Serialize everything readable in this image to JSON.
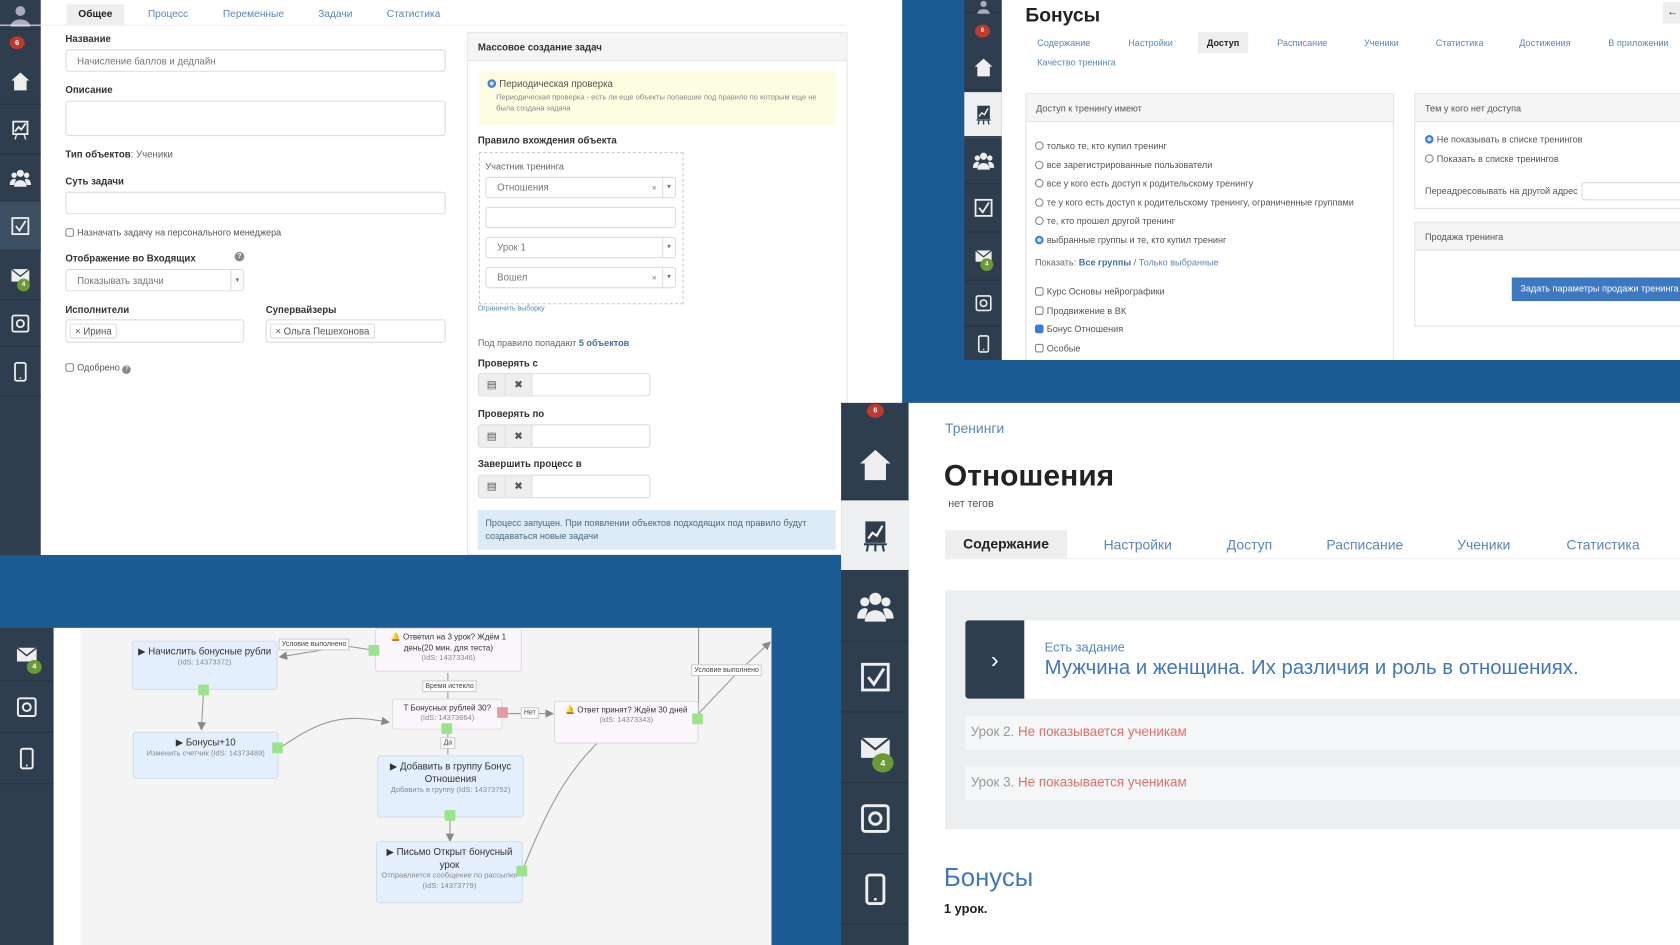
{
  "colors": {
    "brand_blue": "#1c5a94",
    "sidebar": "#2f3e4e",
    "link": "#5a86bd",
    "badge_red": "#c0392b",
    "badge_green": "#6a9a35",
    "warning_red": "#e0706b"
  },
  "sidebar": {
    "notifications_badge": "6",
    "mail_badge": "4",
    "icons": [
      "avatar-icon",
      "home-icon",
      "chart-icon",
      "users-icon",
      "tasks-icon",
      "mail-icon",
      "safe-icon",
      "phone-icon"
    ]
  },
  "process_editor": {
    "tabs": [
      "Общее",
      "Процесс",
      "Переменные",
      "Задачи",
      "Статистика"
    ],
    "name_label": "Название",
    "name_value": "Начисление баллов и дедлайн",
    "description_label": "Описание",
    "object_type_label": "Тип объектов",
    "object_type_value": ": Ученики",
    "task_essence_label": "Суть задачи",
    "assign_manager_label": "Назначать задачу на персонального менеджера",
    "inbox_display_label": "Отображение во Входящих",
    "inbox_display_value": "Показывать задачи",
    "executors_label": "Исполнители",
    "executors": [
      "Ирина"
    ],
    "supervisors_label": "Супервайзеры",
    "supervisors": [
      "Ольга Пешехонова"
    ],
    "approved_label": "Одобрено",
    "mass": {
      "title": "Массовое создание задач",
      "periodic_label": "Периодическая проверка",
      "periodic_hint": "Периодическая проверка - есть ли еще объекты попавшие под правило по которым еще не была создана задача",
      "rule_label": "Правило вхождения объекта",
      "rule_type": "Участник тренинга",
      "training_value": "Отношения",
      "lesson_value": "Урок 1",
      "status_value": "Вошел",
      "limit_link": "Ограничить выборку",
      "match_prefix": "Под правило попадают",
      "match_count": "5 объектов",
      "check_from_label": "Проверять с",
      "check_to_label": "Проверять по",
      "finish_label": "Завершить процесс в",
      "info": "Процесс запущен. При появлении объектов подходящих под правило будут создаваться новые задачи"
    }
  },
  "access_page": {
    "title": "Бонусы",
    "tabs": [
      "Содержание",
      "Настройки",
      "Доступ",
      "Расписание",
      "Ученики",
      "Статистика",
      "Достижения",
      "В приложении",
      "Качество тренинга"
    ],
    "active_tab": "Доступ",
    "access_header": "Доступ к тренингу имеют",
    "access_options": [
      "только те, кто купил тренинг",
      "все зарегистрированные пользователи",
      "все у кого есть доступ к родительскому тренингу",
      "те у кого есть доступ к родительскому тренингу, ограниченные группами",
      "те, кто прошел другой тренинг",
      "выбранные группы и те, кто купил тренинг"
    ],
    "access_selected": 5,
    "show_label": "Показать:",
    "show_all": "Все группы",
    "show_sep": "/",
    "show_selected": "Только выбранные",
    "groups": [
      {
        "label": "Курс Основы нейрографики",
        "checked": false
      },
      {
        "label": "Продвижение в ВК",
        "checked": false
      },
      {
        "label": "Бонус Отношения",
        "checked": true
      },
      {
        "label": "Особые",
        "checked": false
      }
    ],
    "no_access_header": "Тем у кого нет доступа",
    "no_access_options": [
      "Не показывать в списке тренингов",
      "Показать в списке тренингов"
    ],
    "redirect_label": "Переадресовывать на другой адрес",
    "sale_header": "Продажа тренинга",
    "sale_button": "Задать параметры продажи тренинга"
  },
  "flow": {
    "nodes": [
      {
        "title": "▶ Начислить бонусные рубли",
        "sub": "(IdS: 14373372)"
      },
      {
        "title": "▶ Бонусы+10",
        "sub": "Изменить счетчик (IdS: 14373489)"
      },
      {
        "title": "🔔 Ответил на 3 урок? Ждём 1 день(20 мин. для теста)",
        "sub": "(IdS: 14373346)"
      },
      {
        "title": "T Бонусных рублей 30?",
        "sub": "(IdS: 14373664)"
      },
      {
        "title": "🔔 Ответ принят? Ждём 30 дней",
        "sub": "(IdS: 14373343)"
      },
      {
        "title": "▶ Добавить в группу Бонус Отношения",
        "sub": "Добавить в группу (IdS: 14373752)"
      },
      {
        "title": "▶ Письмо Открыт бонусный урок",
        "sub": "Отправляется сообщение по рассылке (IdS: 14373779)"
      }
    ],
    "edge_labels": [
      "Условие выполнено",
      "Время истекло",
      "Нет",
      "Да",
      "Условие выполнено"
    ]
  },
  "training_page": {
    "breadcrumb": "Тренинги",
    "title": "Отношения",
    "tags": "нет тегов",
    "tabs": [
      "Содержание",
      "Настройки",
      "Доступ",
      "Расписание",
      "Ученики",
      "Статистика"
    ],
    "task_label": "Есть задание",
    "lesson_title": "Мужчина и женщина. Их различия и роль в отношениях.",
    "lessons": [
      {
        "name": "Урок 2.",
        "status": "Не показывается ученикам"
      },
      {
        "name": "Урок 3.",
        "status": "Не показывается ученикам"
      }
    ],
    "section_title": "Бонусы",
    "section_count": "1 урок."
  }
}
